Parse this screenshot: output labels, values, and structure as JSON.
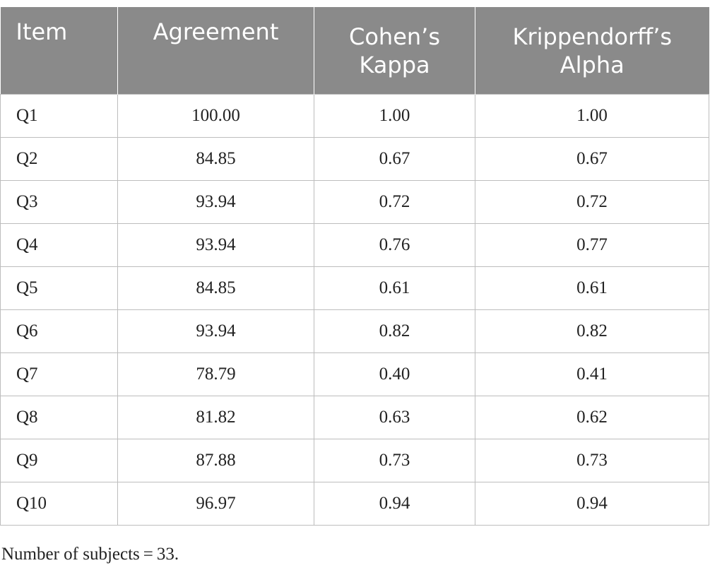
{
  "table": {
    "headers": [
      "Item",
      "Agreement",
      "Cohen’s Kappa",
      "Krippendorff’s Alpha"
    ],
    "header_lines": {
      "col3": [
        "Cohen’s",
        "Kappa"
      ],
      "col4": [
        "Krippendorff’s",
        "Alpha"
      ]
    },
    "rows": [
      [
        "Q1",
        "100.00",
        "1.00",
        "1.00"
      ],
      [
        "Q2",
        "84.85",
        "0.67",
        "0.67"
      ],
      [
        "Q3",
        "93.94",
        "0.72",
        "0.72"
      ],
      [
        "Q4",
        "93.94",
        "0.76",
        "0.77"
      ],
      [
        "Q5",
        "84.85",
        "0.61",
        "0.61"
      ],
      [
        "Q6",
        "93.94",
        "0.82",
        "0.82"
      ],
      [
        "Q7",
        "78.79",
        "0.40",
        "0.41"
      ],
      [
        "Q8",
        "81.82",
        "0.63",
        "0.62"
      ],
      [
        "Q9",
        "87.88",
        "0.73",
        "0.73"
      ],
      [
        "Q10",
        "96.97",
        "0.94",
        "0.94"
      ]
    ]
  },
  "footnote": "Number of subjects = 33.",
  "colors": {
    "header_bg": "#8a8a8a",
    "header_text": "#ffffff",
    "grid": "#bdbdbd",
    "body_text": "#222222"
  }
}
